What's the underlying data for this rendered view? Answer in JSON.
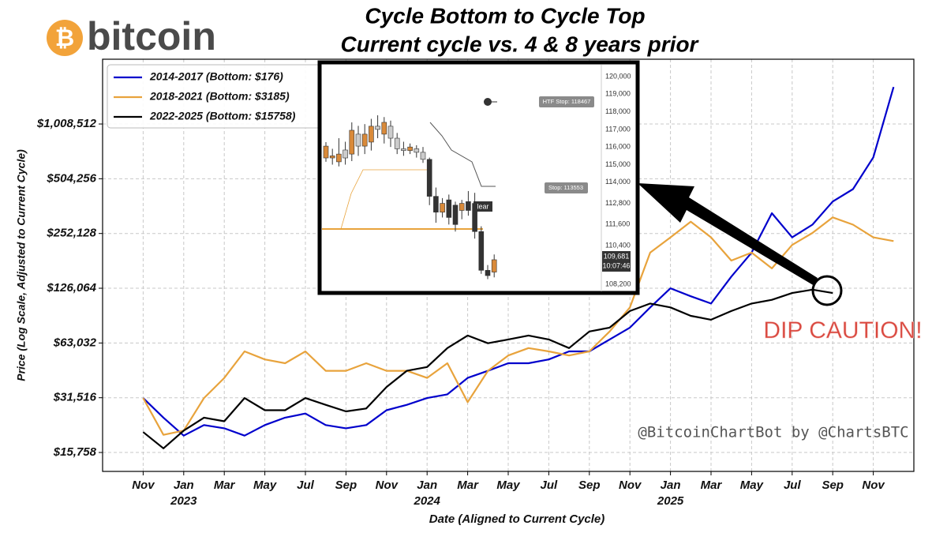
{
  "logo": {
    "symbol": "₿",
    "text": "bitcoin"
  },
  "chart_data": {
    "type": "line",
    "title": "Cycle Bottom to Cycle Top",
    "subtitle": "Current cycle vs. 4 & 8 years prior",
    "xlabel": "Date (Aligned to Current Cycle)",
    "ylabel": "Price (Log Scale, Adjusted to Current Cycle)",
    "log_y": true,
    "grid": true,
    "legend": "upper left",
    "x": [
      "2022-11",
      "2022-12",
      "2023-01",
      "2023-02",
      "2023-03",
      "2023-04",
      "2023-05",
      "2023-06",
      "2023-07",
      "2023-08",
      "2023-09",
      "2023-10",
      "2023-11",
      "2023-12",
      "2024-01",
      "2024-02",
      "2024-03",
      "2024-04",
      "2024-05",
      "2024-06",
      "2024-07",
      "2024-08",
      "2024-09",
      "2024-10",
      "2024-11",
      "2024-12",
      "2025-01",
      "2025-02",
      "2025-03",
      "2025-04",
      "2025-05",
      "2025-06",
      "2025-07",
      "2025-08",
      "2025-09",
      "2025-10",
      "2025-11",
      "2025-12"
    ],
    "series": [
      {
        "name": "2014-2017 (Bottom: $176)",
        "color": "#0000cc",
        "values": [
          31400,
          24500,
          19500,
          22300,
          21400,
          19500,
          22300,
          24500,
          25800,
          22300,
          21400,
          22300,
          26900,
          28800,
          31400,
          32900,
          40500,
          44300,
          48800,
          48800,
          51200,
          56700,
          56700,
          65900,
          76600,
          98900,
          126000,
          113900,
          103900,
          146000,
          198000,
          326000,
          240000,
          282000,
          378000,
          442000,
          661000,
          1610000
        ]
      },
      {
        "name": "2018-2021 (Bottom: $3185)",
        "color": "#e8a33c",
        "values": [
          31400,
          19700,
          20800,
          31400,
          40500,
          56700,
          51200,
          48800,
          56700,
          44300,
          44300,
          48800,
          44300,
          44300,
          40500,
          48800,
          29800,
          44300,
          53800,
          59100,
          56700,
          53800,
          56700,
          72900,
          98900,
          198000,
          240000,
          293000,
          240000,
          179000,
          198000,
          162000,
          218000,
          254000,
          309000,
          282000,
          240000,
          229000
        ]
      },
      {
        "name": "2022-2025 (Bottom: $15758)",
        "color": "#000000",
        "values": [
          20400,
          16600,
          20800,
          24500,
          23400,
          31400,
          26900,
          26900,
          31400,
          28800,
          26500,
          27500,
          36100,
          44300,
          46500,
          59100,
          69300,
          62800,
          65900,
          69300,
          65900,
          59100,
          72900,
          76600,
          94500,
          103900,
          98900,
          88900,
          84600,
          94500,
          103900,
          108900,
          118600,
          123900,
          118600,
          null,
          null,
          null
        ]
      }
    ],
    "xlim": [
      "2022-09",
      "2026-01"
    ],
    "xticks": [
      {
        "value": "2022-11",
        "label": "Nov"
      },
      {
        "value": "2023-01",
        "label": "Jan"
      },
      {
        "value": "2023-03",
        "label": "Mar"
      },
      {
        "value": "2023-05",
        "label": "May"
      },
      {
        "value": "2023-07",
        "label": "Jul"
      },
      {
        "value": "2023-09",
        "label": "Sep"
      },
      {
        "value": "2023-11",
        "label": "Nov"
      },
      {
        "value": "2024-01",
        "label": "Jan"
      },
      {
        "value": "2024-03",
        "label": "Mar"
      },
      {
        "value": "2024-05",
        "label": "May"
      },
      {
        "value": "2024-07",
        "label": "Jul"
      },
      {
        "value": "2024-09",
        "label": "Sep"
      },
      {
        "value": "2024-11",
        "label": "Nov"
      },
      {
        "value": "2025-01",
        "label": "Jan"
      },
      {
        "value": "2025-03",
        "label": "Mar"
      },
      {
        "value": "2025-05",
        "label": "May"
      },
      {
        "value": "2025-07",
        "label": "Jul"
      },
      {
        "value": "2025-09",
        "label": "Sep"
      },
      {
        "value": "2025-11",
        "label": "Nov"
      }
    ],
    "xtick_years": [
      {
        "value": "2023-01",
        "label": "2023"
      },
      {
        "value": "2024-01",
        "label": "2024"
      },
      {
        "value": "2025-01",
        "label": "2025"
      }
    ],
    "ylim": [
      12400,
      2290000
    ],
    "yticks": [
      {
        "value": 15758,
        "label": "$15,758"
      },
      {
        "value": 31516,
        "label": "$31,516"
      },
      {
        "value": 63032,
        "label": "$63,032"
      },
      {
        "value": 126064,
        "label": "$126,064"
      },
      {
        "value": 252128,
        "label": "$252,128"
      },
      {
        "value": 504256,
        "label": "$504,256"
      },
      {
        "value": 1008512,
        "label": "$1,008,512"
      }
    ],
    "annotations": {
      "warning": "DIP CAUTION!",
      "credit": "@BitcoinChartBot by @ChartsBTC"
    }
  },
  "inset": {
    "type": "candlestick",
    "ylim": [
      107760,
      120760
    ],
    "yticks": [
      {
        "value": 120000,
        "label": "120,000"
      },
      {
        "value": 119000,
        "label": "119,000"
      },
      {
        "value": 118000,
        "label": "118,000"
      },
      {
        "value": 117000,
        "label": "117,000"
      },
      {
        "value": 116000,
        "label": "116,000"
      },
      {
        "value": 115000,
        "label": "115,000"
      },
      {
        "value": 114000,
        "label": "114,000"
      },
      {
        "value": 112800,
        "label": "112,800"
      },
      {
        "value": 111600,
        "label": "111,600"
      },
      {
        "value": 110400,
        "label": "110,400"
      },
      {
        "value": 108200,
        "label": "108,200"
      }
    ],
    "candles": [
      {
        "open": 115380,
        "high": 116280,
        "low": 115160,
        "close": 116050
      },
      {
        "open": 115380,
        "high": 115900,
        "low": 115000,
        "close": 115500
      },
      {
        "open": 115160,
        "high": 116500,
        "low": 114900,
        "close": 115600
      },
      {
        "open": 115830,
        "high": 116300,
        "low": 115000,
        "close": 115380
      },
      {
        "open": 115600,
        "high": 117400,
        "low": 115200,
        "close": 116950
      },
      {
        "open": 116730,
        "high": 117200,
        "low": 115500,
        "close": 116050
      },
      {
        "open": 116050,
        "high": 117300,
        "low": 115600,
        "close": 116730
      },
      {
        "open": 116280,
        "high": 117600,
        "low": 115800,
        "close": 117180
      },
      {
        "open": 117180,
        "high": 117800,
        "low": 116500,
        "close": 117000
      },
      {
        "open": 116730,
        "high": 117700,
        "low": 116200,
        "close": 117400
      },
      {
        "open": 117180,
        "high": 117500,
        "low": 116000,
        "close": 116500
      },
      {
        "open": 116500,
        "high": 116800,
        "low": 115600,
        "close": 115900
      },
      {
        "open": 115900,
        "high": 116300,
        "low": 115500,
        "close": 115800
      },
      {
        "open": 115800,
        "high": 116200,
        "low": 115600,
        "close": 116000
      },
      {
        "open": 115900,
        "high": 116100,
        "low": 115400,
        "close": 115700
      },
      {
        "open": 115700,
        "high": 116000,
        "low": 115100,
        "close": 115300
      },
      {
        "open": 115300,
        "high": 115400,
        "low": 112700,
        "close": 113200
      },
      {
        "open": 113200,
        "high": 113700,
        "low": 111700,
        "close": 112300
      },
      {
        "open": 112300,
        "high": 113100,
        "low": 112000,
        "close": 112800
      },
      {
        "open": 113000,
        "high": 113300,
        "low": 111600,
        "close": 112000
      },
      {
        "open": 112700,
        "high": 112900,
        "low": 111200,
        "close": 111600
      },
      {
        "open": 112400,
        "high": 113000,
        "low": 111900,
        "close": 112800
      },
      {
        "open": 112900,
        "high": 113500,
        "low": 112100,
        "close": 112400
      },
      {
        "open": 112800,
        "high": 113400,
        "low": 110800,
        "close": 111200
      },
      {
        "open": 111200,
        "high": 111500,
        "low": 108800,
        "close": 109000
      },
      {
        "open": 109000,
        "high": 109300,
        "low": 108500,
        "close": 108700
      },
      {
        "open": 108900,
        "high": 109900,
        "low": 108600,
        "close": 109600
      }
    ],
    "labels": {
      "htf_stop": "HTF Stop: 118467",
      "stop": "Stop: 113553",
      "price": "109,681",
      "timer": "10:07:46",
      "marker": "lear"
    }
  }
}
